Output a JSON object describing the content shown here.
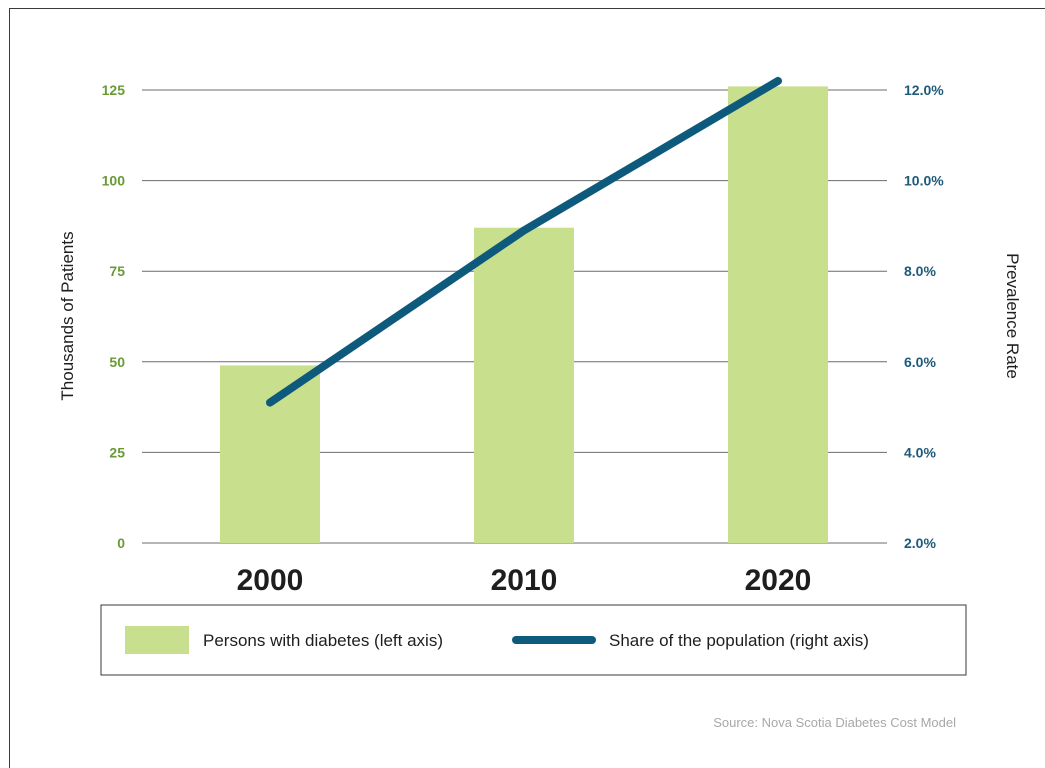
{
  "chart_data": {
    "type": "bar+line",
    "categories": [
      "2000",
      "2010",
      "2020"
    ],
    "series": [
      {
        "name": "Persons with diabetes (left axis)",
        "type": "bar",
        "axis": "left",
        "values": [
          49,
          87,
          126
        ],
        "color": "#c8df8e"
      },
      {
        "name": "Share of the population (right axis)",
        "type": "line",
        "axis": "right",
        "values": [
          5.1,
          8.9,
          12.2
        ],
        "color": "#0e5a7c"
      }
    ],
    "left_axis": {
      "label": "Thousands of Patients",
      "ticks": [
        "0",
        "25",
        "50",
        "75",
        "100",
        "125"
      ],
      "range": [
        0,
        125
      ],
      "color": "#6a9a35"
    },
    "right_axis": {
      "label": "Prevalence Rate",
      "ticks": [
        "2.0%",
        "4.0%",
        "6.0%",
        "8.0%",
        "10.0%",
        "12.0%"
      ],
      "range": [
        2,
        12
      ],
      "color": "#1e5a7a"
    },
    "grid": "horizontal",
    "legend_position": "bottom",
    "source": "Source: Nova Scotia Diabetes Cost Model"
  }
}
